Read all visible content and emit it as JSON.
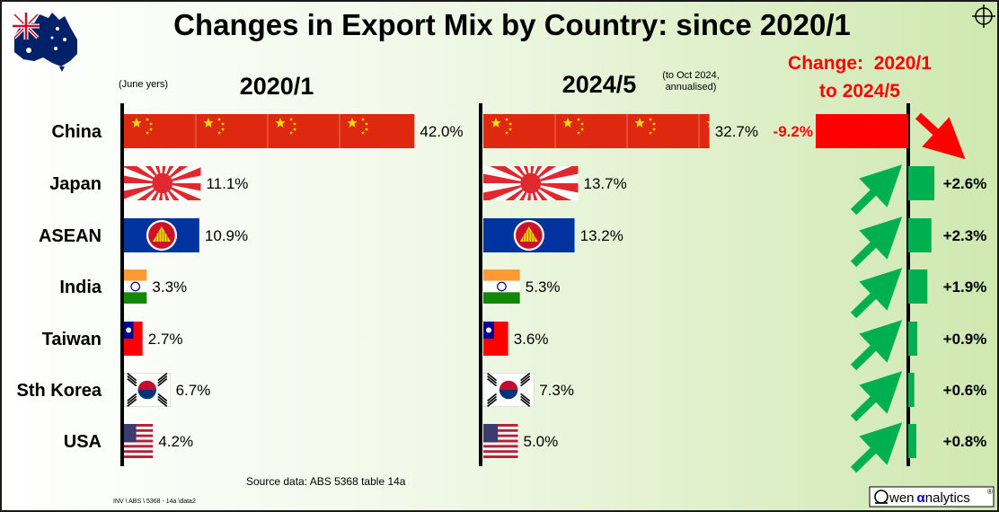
{
  "title": "Changes in Export Mix by Country: since 2020/1",
  "left_header": "2020/1",
  "left_note": "(June yers)",
  "right_header": "2024/5",
  "right_note_line1": "(to Oct 2024,",
  "right_note_line2": "annualised)",
  "change_header_line1": "Change:  2020/1",
  "change_header_line2": "to 2024/5",
  "source": "Source data:  ABS 5368 table 14a",
  "footnote": "INV \\ ABS \\ 5368  - 14a  \\data2",
  "logo": {
    "prefix": "wen",
    "greek": "α",
    "suffix": "nalytics",
    "reg": "®"
  },
  "colors": {
    "china_red": "#de2910",
    "change_negative": "#ff0000",
    "change_positive": "#00b050",
    "arrow_green": "#00b050",
    "arrow_red": "#ff0000",
    "asean_blue": "#0033a0"
  },
  "chart_data": {
    "type": "bar",
    "categories": [
      "China",
      "Japan",
      "ASEAN",
      "India",
      "Taiwan",
      "Sth Korea",
      "USA"
    ],
    "icons": [
      "flag-china-icon",
      "flag-japan-icon",
      "flag-asean-icon",
      "flag-india-icon",
      "flag-taiwan-icon",
      "flag-korea-icon",
      "flag-usa-icon"
    ],
    "series": [
      {
        "name": "2020/1",
        "values": [
          42.0,
          11.1,
          10.9,
          3.3,
          2.7,
          6.7,
          4.2
        ],
        "labels": [
          "42.0%",
          "11.1%",
          "10.9%",
          "3.3%",
          "2.7%",
          "6.7%",
          "4.2%"
        ]
      },
      {
        "name": "2024/5",
        "values": [
          32.7,
          13.7,
          13.2,
          5.3,
          3.6,
          7.3,
          5.0
        ],
        "labels": [
          "32.7%",
          "13.7%",
          "13.2%",
          "5.3%",
          "3.6%",
          "7.3%",
          "5.0%"
        ]
      },
      {
        "name": "Change:  2020/1 to 2024/5",
        "values": [
          -9.2,
          2.6,
          2.3,
          1.9,
          0.9,
          0.6,
          0.8
        ],
        "labels": [
          "-9.2%",
          "+2.6%",
          "+2.3%",
          "+1.9%",
          "+0.9%",
          "+0.6%",
          "+0.8%"
        ]
      }
    ]
  }
}
